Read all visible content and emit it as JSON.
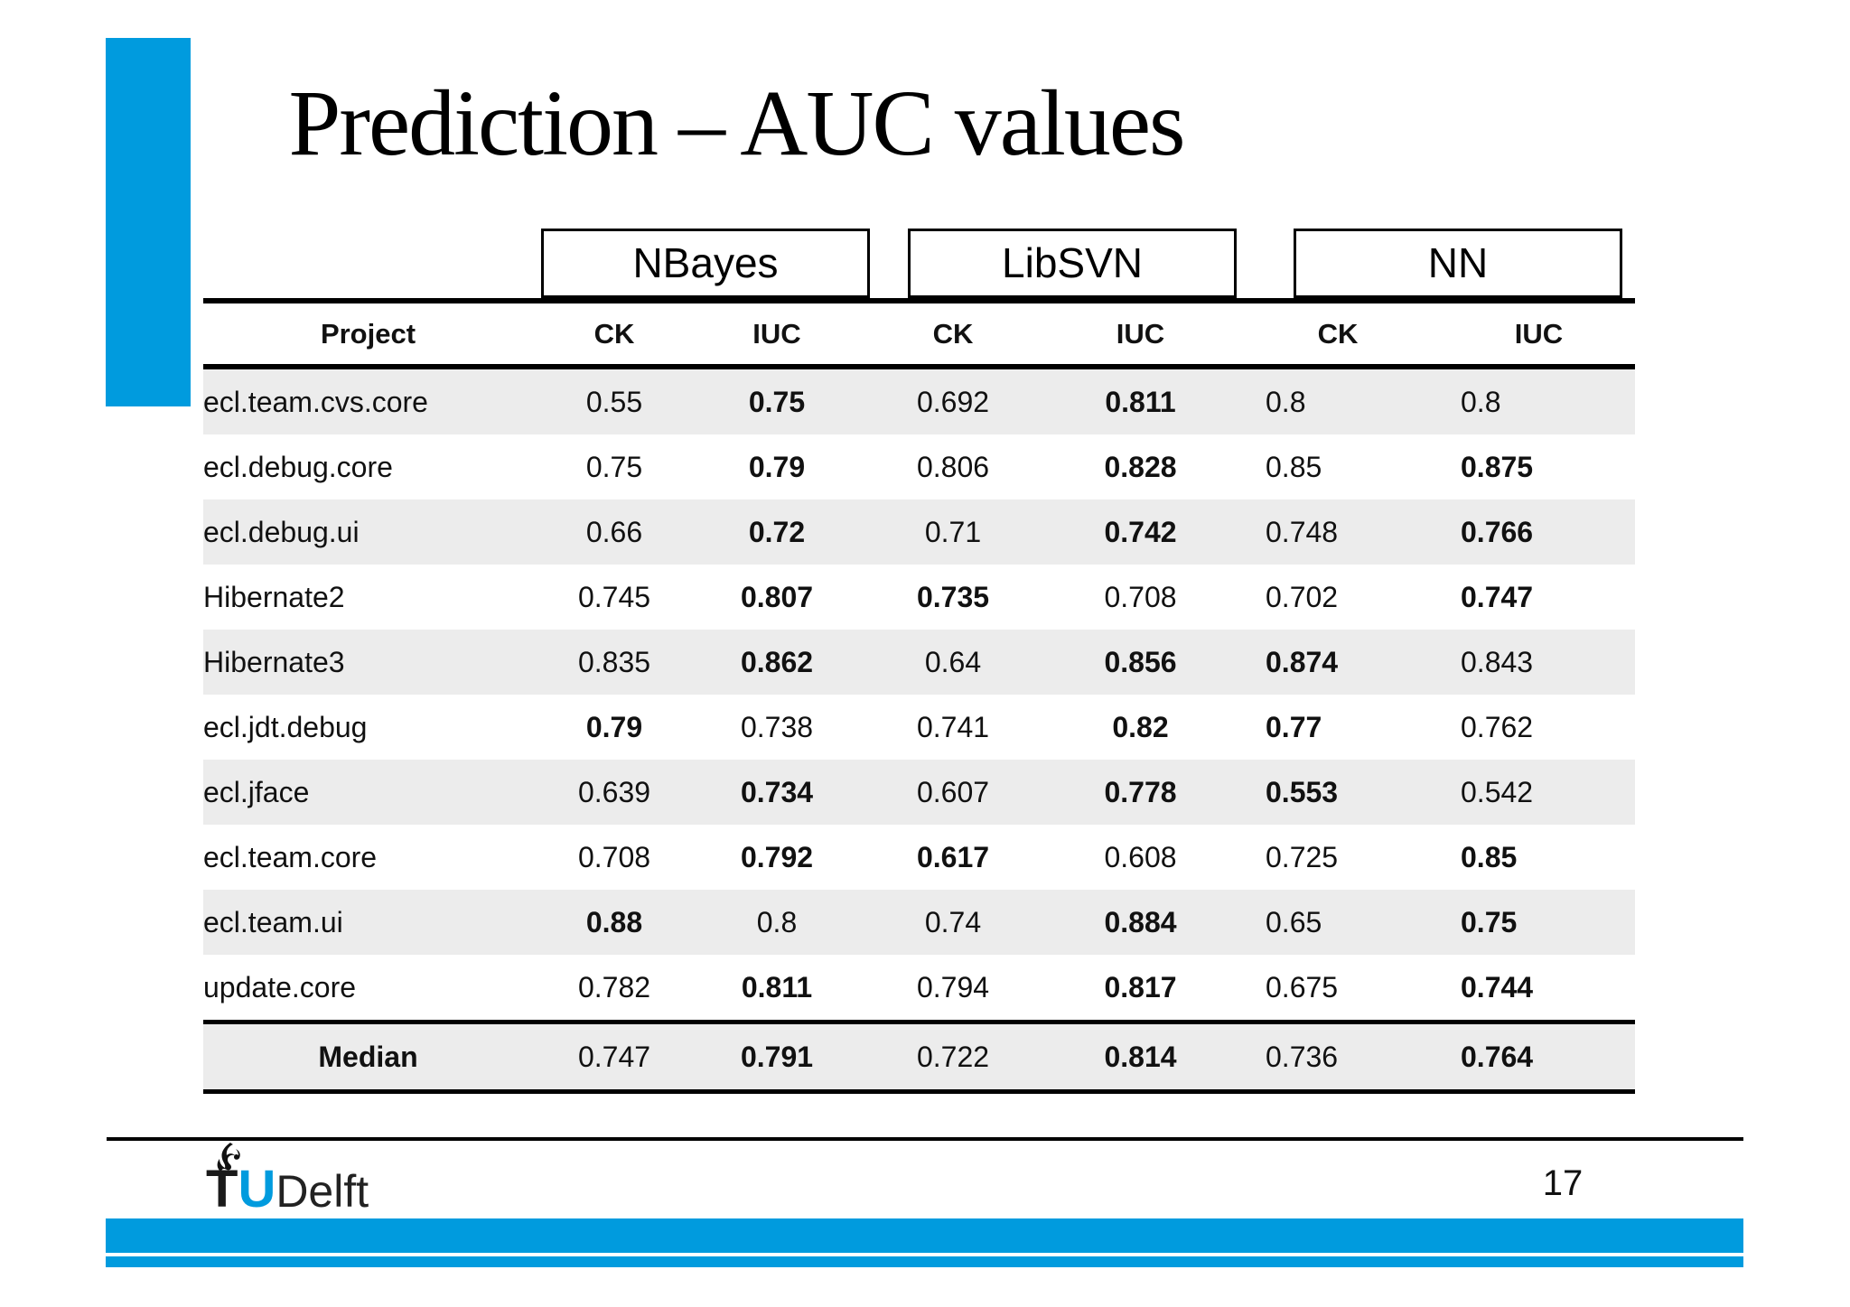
{
  "slide": {
    "title": "Prediction – AUC values",
    "page_number": "17"
  },
  "footer": {
    "logo": {
      "t": "T",
      "u": "U",
      "name": "Delft"
    }
  },
  "table": {
    "group_headers": [
      "NBayes",
      "LibSVN",
      "NN"
    ],
    "column_headers": [
      "Project",
      "CK",
      "IUC",
      "CK",
      "IUC",
      "CK",
      "IUC"
    ],
    "rows": [
      {
        "project": "ecl.team.cvs.core",
        "values": [
          "0.55",
          "0.75",
          "0.692",
          "0.811",
          "0.8",
          "0.8"
        ],
        "bold": [
          false,
          true,
          false,
          true,
          false,
          false
        ]
      },
      {
        "project": "ecl.debug.core",
        "values": [
          "0.75",
          "0.79",
          "0.806",
          "0.828",
          "0.85",
          "0.875"
        ],
        "bold": [
          false,
          true,
          false,
          true,
          false,
          true
        ]
      },
      {
        "project": "ecl.debug.ui",
        "values": [
          "0.66",
          "0.72",
          "0.71",
          "0.742",
          "0.748",
          "0.766"
        ],
        "bold": [
          false,
          true,
          false,
          true,
          false,
          true
        ]
      },
      {
        "project": "Hibernate2",
        "values": [
          "0.745",
          "0.807",
          "0.735",
          "0.708",
          "0.702",
          "0.747"
        ],
        "bold": [
          false,
          true,
          true,
          false,
          false,
          true
        ]
      },
      {
        "project": "Hibernate3",
        "values": [
          "0.835",
          "0.862",
          "0.64",
          "0.856",
          "0.874",
          "0.843"
        ],
        "bold": [
          false,
          true,
          false,
          true,
          true,
          false
        ]
      },
      {
        "project": "ecl.jdt.debug",
        "values": [
          "0.79",
          "0.738",
          "0.741",
          "0.82",
          "0.77",
          "0.762"
        ],
        "bold": [
          true,
          false,
          false,
          true,
          true,
          false
        ]
      },
      {
        "project": "ecl.jface",
        "values": [
          "0.639",
          "0.734",
          "0.607",
          "0.778",
          "0.553",
          "0.542"
        ],
        "bold": [
          false,
          true,
          false,
          true,
          true,
          false
        ]
      },
      {
        "project": "ecl.team.core",
        "values": [
          "0.708",
          "0.792",
          "0.617",
          "0.608",
          "0.725",
          "0.85"
        ],
        "bold": [
          false,
          true,
          true,
          false,
          false,
          true
        ]
      },
      {
        "project": "ecl.team.ui",
        "values": [
          "0.88",
          "0.8",
          "0.74",
          "0.884",
          "0.65",
          "0.75"
        ],
        "bold": [
          true,
          false,
          false,
          true,
          false,
          true
        ]
      },
      {
        "project": "update.core",
        "values": [
          "0.782",
          "0.811",
          "0.794",
          "0.817",
          "0.675",
          "0.744"
        ],
        "bold": [
          false,
          true,
          false,
          true,
          false,
          true
        ]
      }
    ],
    "median": {
      "label": "Median",
      "values": [
        "0.747",
        "0.791",
        "0.722",
        "0.814",
        "0.736",
        "0.764"
      ],
      "bold": [
        false,
        true,
        false,
        true,
        false,
        true
      ]
    }
  },
  "colors": {
    "accent_blue": "#009BDE",
    "row_shade": "#ececec"
  }
}
